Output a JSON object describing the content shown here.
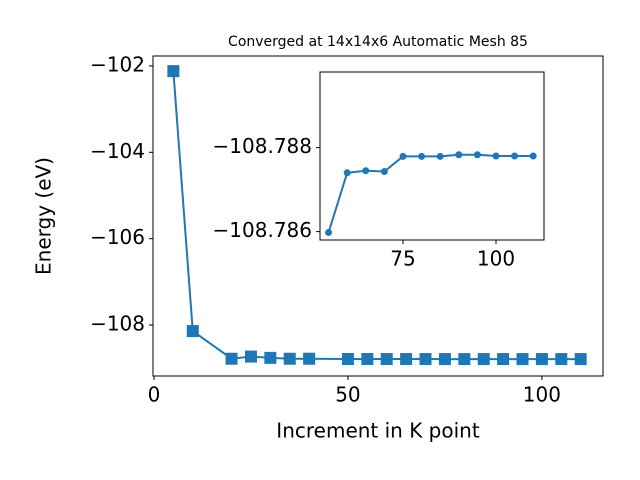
{
  "chart_data": [
    {
      "type": "line",
      "title": "Converged at 14x14x6 Automatic Mesh 85",
      "x_label": "Increment in K point",
      "y_label": "Energy (eV)",
      "x": [
        5,
        10,
        20,
        25,
        30,
        35,
        40,
        50,
        55,
        60,
        65,
        70,
        75,
        80,
        85,
        90,
        95,
        100,
        105,
        110
      ],
      "series": [
        {
          "color": "#1f77b4",
          "marker": "square",
          "values": [
            -102.12,
            -108.14,
            -108.78,
            -108.73,
            -108.76,
            -108.78,
            -108.78,
            -108.786,
            -108.786,
            -108.7874,
            -108.7874,
            -108.7874,
            -108.7878,
            -108.7878,
            -108.7878,
            -108.7878,
            -108.7878,
            -108.7878,
            -108.7878,
            -108.7878
          ]
        }
      ],
      "xlim": [
        -0.25,
        115.75
      ],
      "ylim": [
        -109.18,
        -101.77
      ],
      "xticks": [
        0,
        50,
        100
      ],
      "yticks": [
        {
          "value": -108,
          "label": "−108"
        },
        {
          "value": -106,
          "label": "−106"
        },
        {
          "value": -104,
          "label": "−104"
        },
        {
          "value": -102,
          "label": "−102"
        }
      ]
    },
    {
      "type": "line",
      "x": [
        55,
        60,
        65,
        70,
        75,
        80,
        85,
        90,
        95,
        100,
        105,
        110
      ],
      "series": [
        {
          "color": "#1f77b4",
          "marker": "circle",
          "values": [
            -108.78598,
            -108.7874,
            -108.78745,
            -108.78743,
            -108.78779,
            -108.78779,
            -108.78779,
            -108.78783,
            -108.78783,
            -108.7878,
            -108.7878,
            -108.7878
          ]
        }
      ],
      "xlim": [
        52.7,
        112.9
      ],
      "ylim": [
        -108.7858,
        -108.7898
      ],
      "xticks": [
        75,
        100
      ],
      "yticks": [
        {
          "value": -108.786,
          "label": "−108.786"
        },
        {
          "value": -108.788,
          "label": "−108.788"
        }
      ]
    }
  ]
}
